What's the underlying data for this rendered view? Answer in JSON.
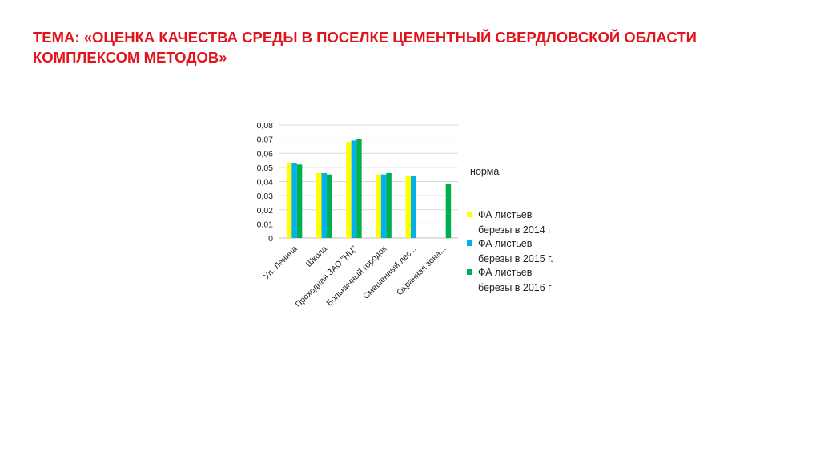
{
  "slide": {
    "title_line1": "ТЕМА: «ОЦЕНКА КАЧЕСТВА СРЕДЫ В ПОСЕЛКЕ ЦЕМЕНТНЫЙ СВЕРДЛОВСКОЙ ОБЛАСТИ",
    "title_line2": "КОМПЛЕКСОМ МЕТОДОВ»",
    "title_color": "#e3131b"
  },
  "chart_data": {
    "type": "bar",
    "categories": [
      "Ул. Ленина",
      "Школа",
      "Проходная ЗАО \"НЦ\"",
      "Больничный городок",
      "Смешенный лес...",
      "Охранная зона..."
    ],
    "series": [
      {
        "name": "ФА листьев березы в 2014 г",
        "legend_lines": [
          "ФА листьев",
          "березы в 2014 г"
        ],
        "color": "#ffff00",
        "values": [
          0.053,
          0.046,
          0.068,
          0.045,
          0.044,
          null
        ]
      },
      {
        "name": "ФА листьев березы в 2015 г.",
        "legend_lines": [
          "ФА листьев",
          "березы в 2015 г."
        ],
        "color": "#00b0f0",
        "values": [
          0.053,
          0.046,
          0.069,
          0.045,
          0.044,
          null
        ]
      },
      {
        "name": "ФА листьев березы в 2016 г",
        "legend_lines": [
          "ФА листьев",
          "березы в 2016 г"
        ],
        "color": "#00b050",
        "values": [
          0.052,
          0.045,
          0.07,
          0.046,
          null,
          0.038
        ]
      }
    ],
    "norm_label": "норма",
    "yticks": [
      "0",
      "0,01",
      "0,02",
      "0,03",
      "0,04",
      "0,05",
      "0,06",
      "0,07",
      "0,08"
    ],
    "ylim": [
      0,
      0.08
    ],
    "grid": true,
    "legend_position": "right",
    "title": "",
    "xlabel": "",
    "ylabel": ""
  }
}
